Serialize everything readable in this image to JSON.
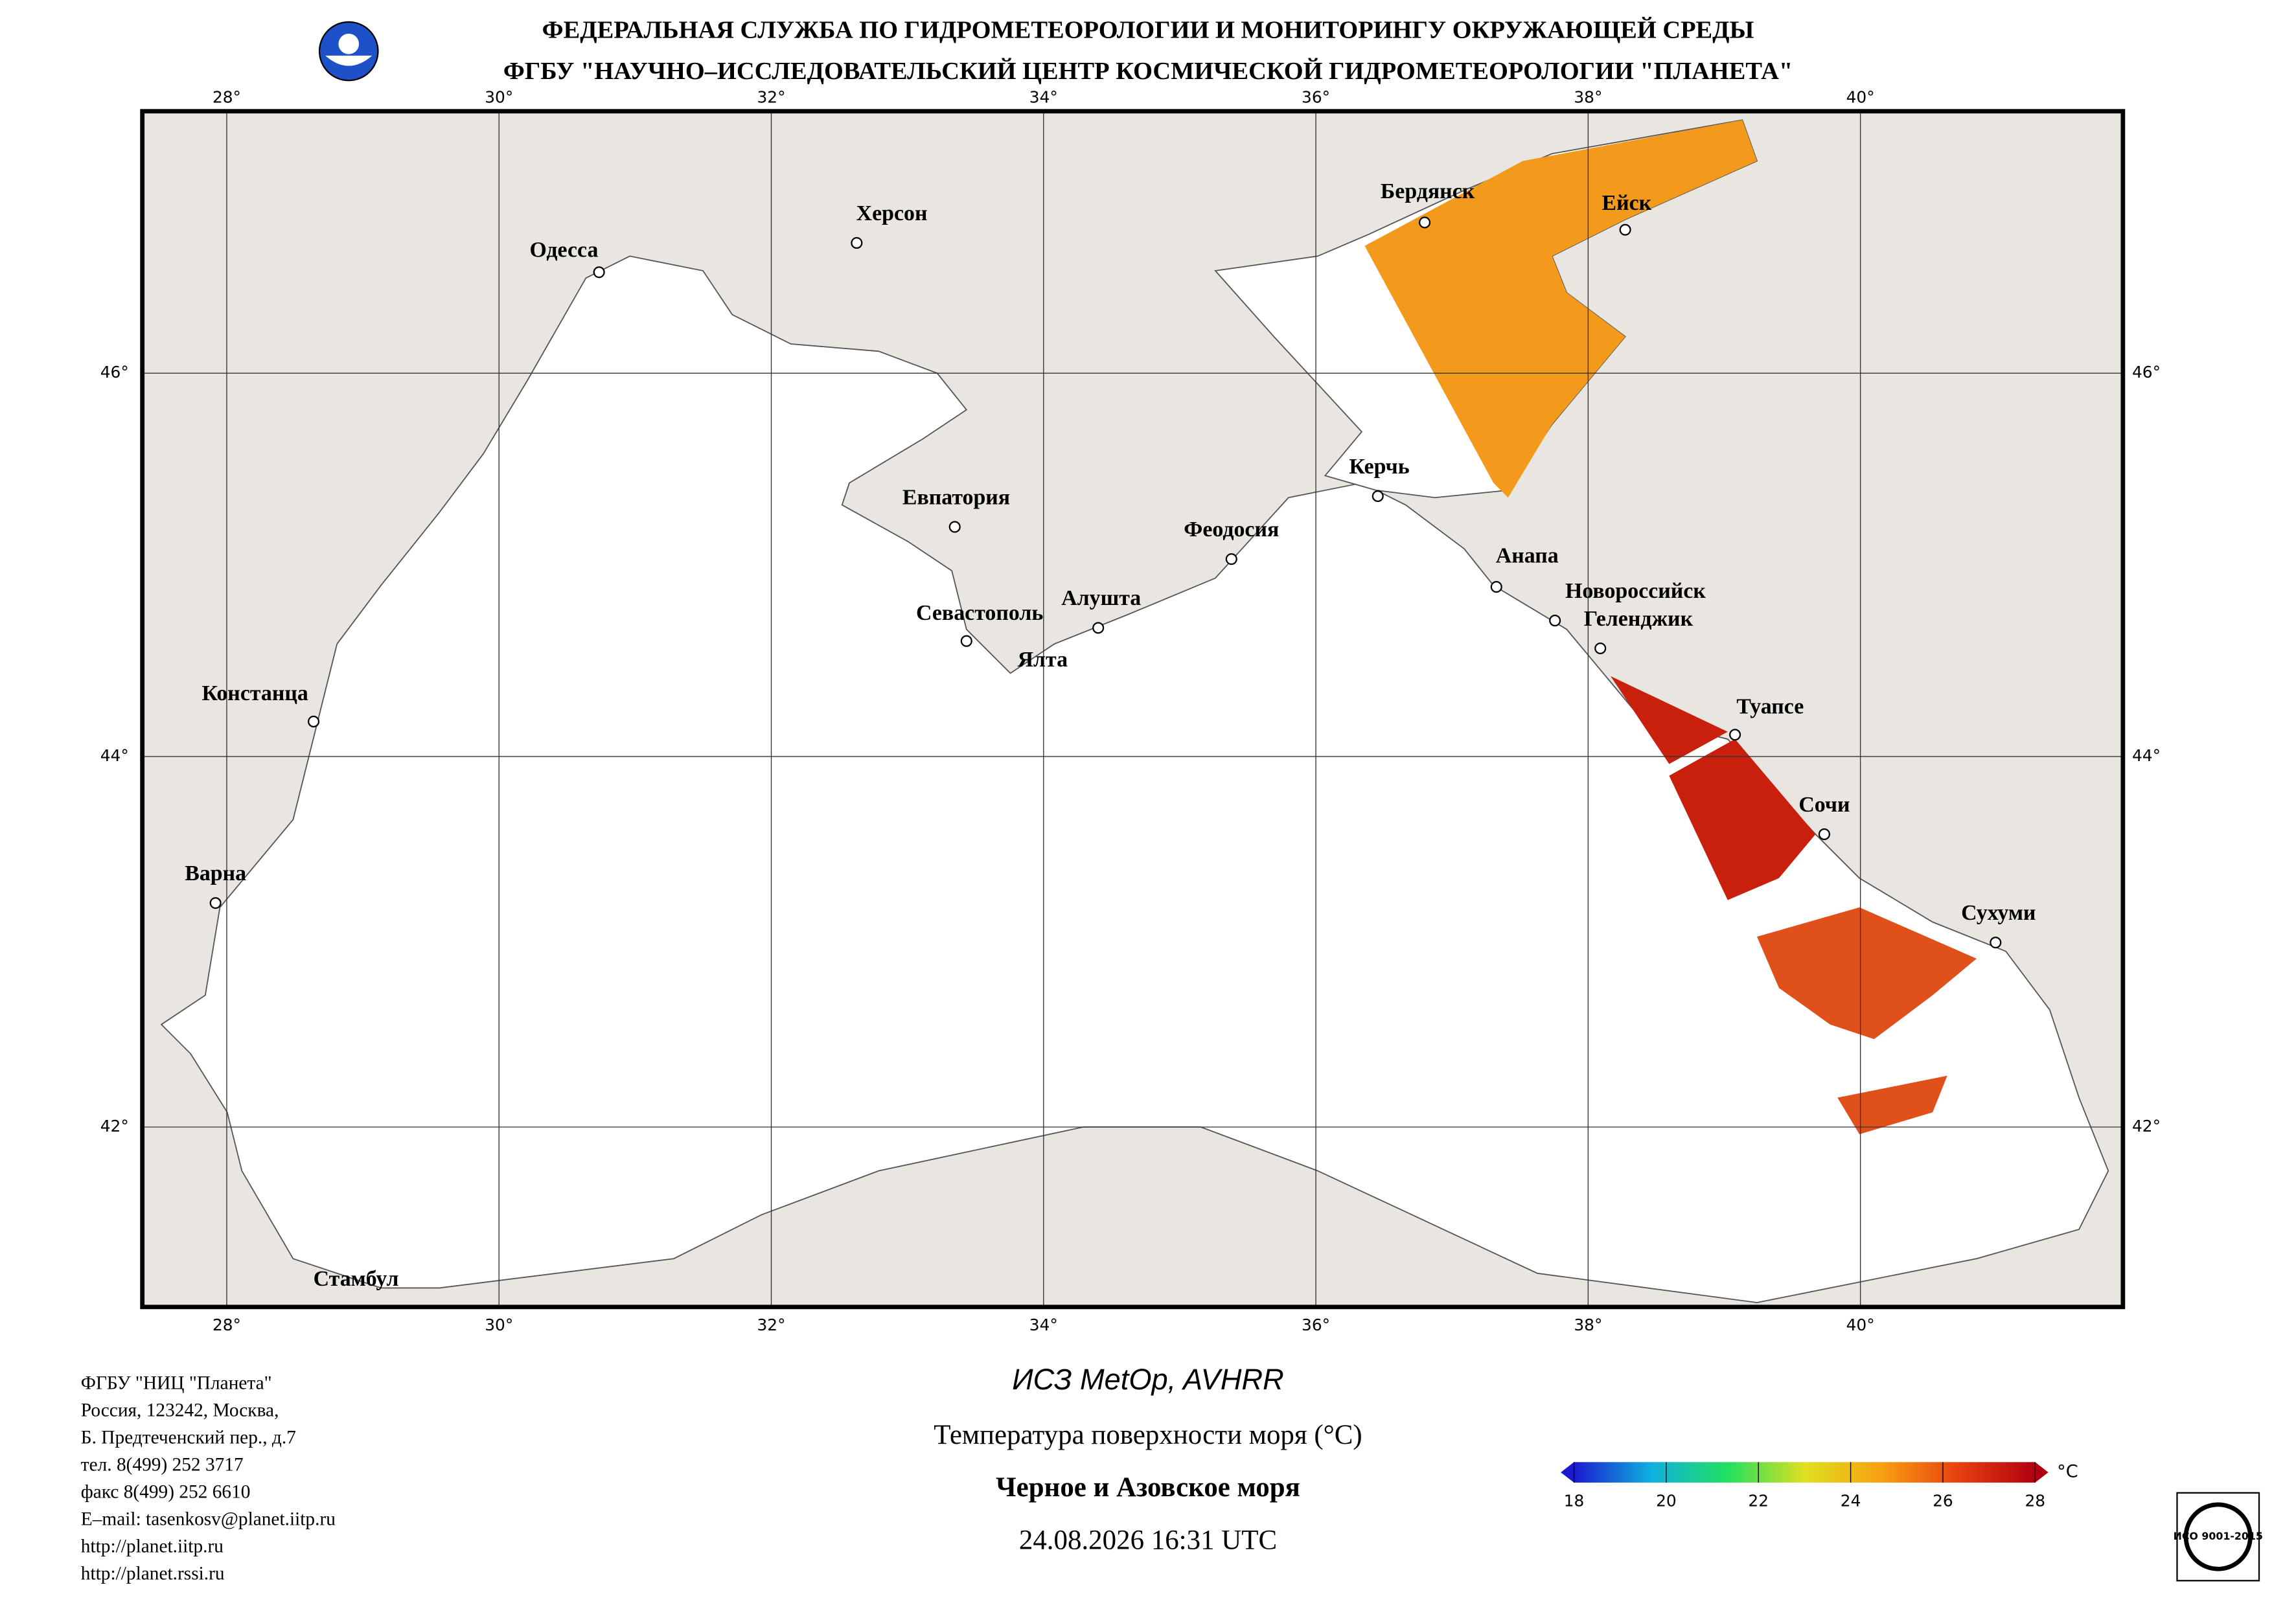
{
  "header": {
    "line1": "ФЕДЕРАЛЬНАЯ СЛУЖБА ПО ГИДРОМЕТЕОРОЛОГИИ И МОНИТОРИНГУ ОКРУЖАЮЩЕЙ СРЕДЫ",
    "line2": "ФГБУ \"НАУЧНО–ИССЛЕДОВАТЕЛЬСКИЙ ЦЕНТР КОСМИЧЕСКОЙ ГИДРОМЕТЕОРОЛОГИИ \"ПЛАНЕТА\""
  },
  "map": {
    "lon_ticks": [
      {
        "value": 28,
        "label": "28°"
      },
      {
        "value": 30,
        "label": "30°"
      },
      {
        "value": 32,
        "label": "32°"
      },
      {
        "value": 34,
        "label": "34°"
      },
      {
        "value": 36,
        "label": "36°"
      },
      {
        "value": 38,
        "label": "38°"
      },
      {
        "value": 40,
        "label": "40°"
      }
    ],
    "lat_ticks": [
      {
        "value": 46,
        "label": "46°"
      },
      {
        "value": 44,
        "label": "44°"
      },
      {
        "value": 42,
        "label": "42°"
      }
    ],
    "cities": [
      "Одесса",
      "Херсон",
      "Бердянск",
      "Ейск",
      "Евпатория",
      "Керчь",
      "Феодосия",
      "Анапа",
      "Новороссийск",
      "Геленджик",
      "Алушта",
      "Севастополь",
      "Ялта",
      "Констанца",
      "Туапсе",
      "Сочи",
      "Варна",
      "Сухуми",
      "Стамбул"
    ]
  },
  "footer": {
    "satellite": "ИСЗ MetOp, AVHRR",
    "product": "Температура поверхности моря (°C)",
    "region": "Черное и Азовское моря",
    "datetime": "24.08.2026 16:31 UTC",
    "address": [
      "ФГБУ \"НИЦ \"Планета\"",
      "Россия, 123242, Москва,",
      "Б. Предтеченский пер., д.7",
      "тел. 8(499) 252 3717",
      "факс 8(499) 252 6610",
      "E–mail: tasenkosv@planet.iitp.ru",
      "http://planet.iitp.ru",
      "http://planet.rssi.ru"
    ],
    "iso_stamp": "ИСО 9001-2015"
  },
  "colorbar": {
    "clim": [
      18,
      28
    ],
    "ticks": [
      18,
      20,
      22,
      24,
      26,
      28
    ],
    "unit": "°C",
    "colors": [
      "#1a1ad0",
      "#10b0e0",
      "#20e060",
      "#e0e020",
      "#f8a010",
      "#e84010",
      "#b00010"
    ]
  }
}
